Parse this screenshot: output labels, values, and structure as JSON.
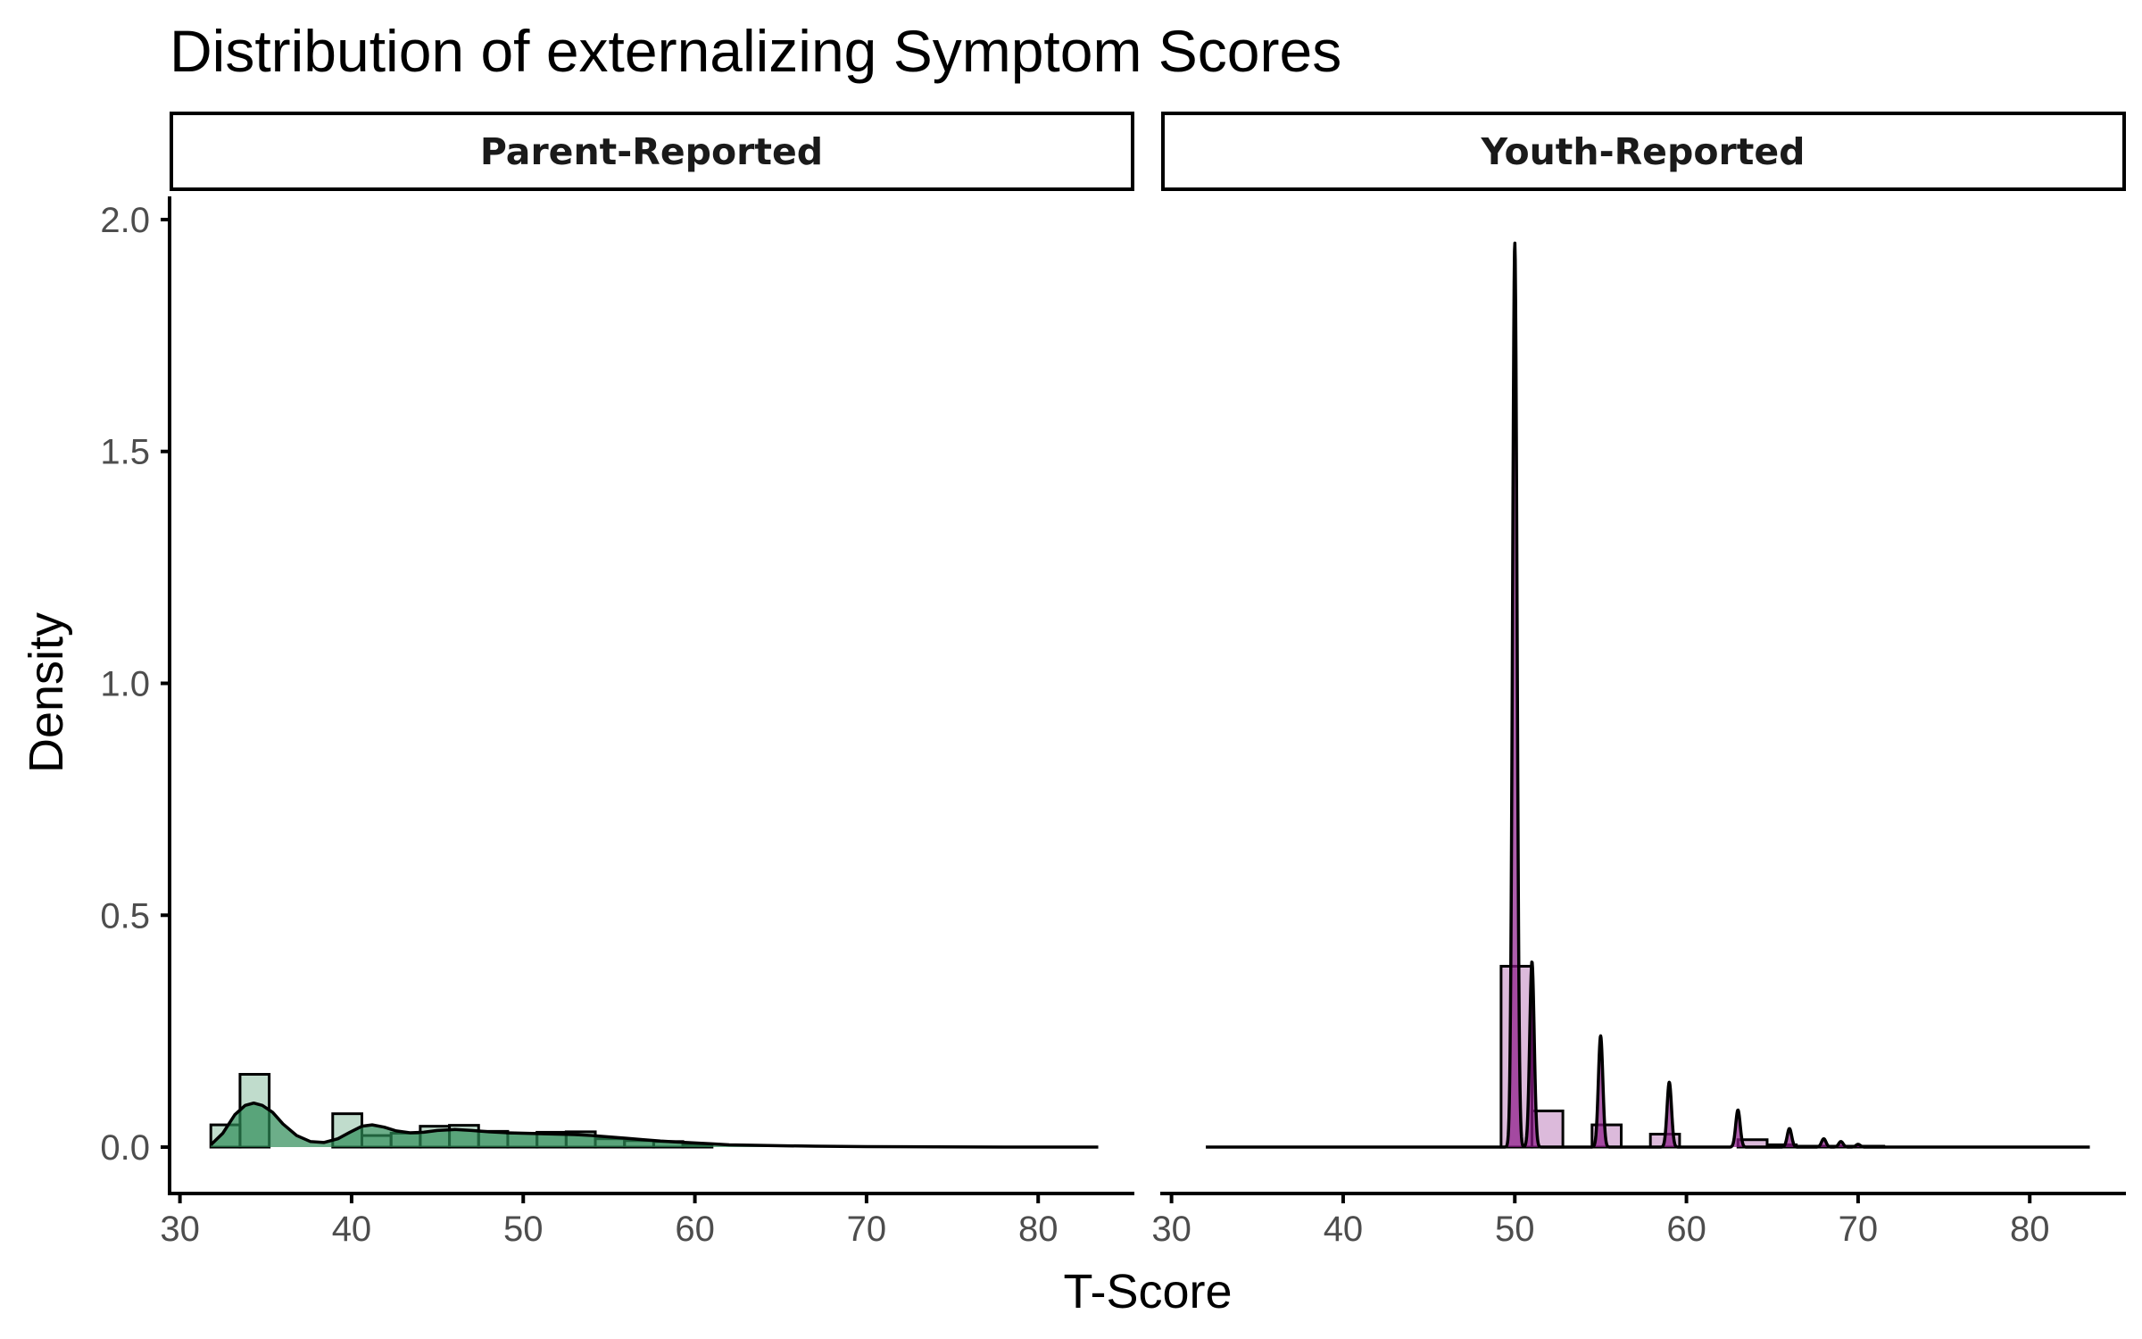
{
  "chart_data": {
    "type": "histogram+density",
    "title": "Distribution of externalizing Symptom Scores",
    "xlabel": "T-Score",
    "ylabel": "Density",
    "xlim": [
      29.5,
      85.5
    ],
    "ylim": [
      -0.1,
      2.05
    ],
    "x_ticks": [
      30,
      40,
      50,
      60,
      70,
      80
    ],
    "y_ticks": [
      0.0,
      0.5,
      1.0,
      1.5,
      2.0
    ],
    "x_tick_labels": [
      "30",
      "40",
      "50",
      "60",
      "70",
      "80"
    ],
    "y_tick_labels": [
      "0.0",
      "0.5",
      "1.0",
      "1.5",
      "2.0"
    ],
    "grid": false,
    "panels": [
      {
        "strip_label": "Parent-Reported",
        "bar_color": "#2e8b57",
        "bar_opacity": 0.3,
        "density_color": "#2e8b57",
        "density_opacity": 0.7,
        "histogram": [
          {
            "x0": 31.8,
            "x1": 33.5,
            "density": 0.048
          },
          {
            "x0": 33.5,
            "x1": 35.2,
            "density": 0.157
          },
          {
            "x0": 35.2,
            "x1": 38.9,
            "density": 0.0
          },
          {
            "x0": 38.9,
            "x1": 40.6,
            "density": 0.072
          },
          {
            "x0": 40.6,
            "x1": 42.3,
            "density": 0.025
          },
          {
            "x0": 42.3,
            "x1": 44.0,
            "density": 0.03
          },
          {
            "x0": 44.0,
            "x1": 45.7,
            "density": 0.045
          },
          {
            "x0": 45.7,
            "x1": 47.4,
            "density": 0.047
          },
          {
            "x0": 47.4,
            "x1": 49.1,
            "density": 0.034
          },
          {
            "x0": 49.1,
            "x1": 50.8,
            "density": 0.03
          },
          {
            "x0": 50.8,
            "x1": 52.5,
            "density": 0.032
          },
          {
            "x0": 52.5,
            "x1": 54.2,
            "density": 0.033
          },
          {
            "x0": 54.2,
            "x1": 55.9,
            "density": 0.018
          },
          {
            "x0": 55.9,
            "x1": 57.6,
            "density": 0.014
          },
          {
            "x0": 57.6,
            "x1": 59.3,
            "density": 0.012
          },
          {
            "x0": 59.3,
            "x1": 61.0,
            "density": 0.006
          }
        ],
        "density_curve": {
          "x": [
            31.8,
            32.5,
            33.2,
            33.8,
            34.3,
            34.8,
            35.4,
            36.0,
            36.8,
            37.6,
            38.4,
            39.2,
            39.9,
            40.6,
            41.2,
            41.9,
            42.6,
            43.4,
            44.2,
            45.0,
            46.0,
            47.0,
            48.0,
            49.0,
            50.0,
            51.0,
            52.0,
            53.0,
            54.0,
            55.0,
            56.0,
            57.0,
            58.0,
            59.0,
            60.0,
            61.0,
            62.0,
            63.5,
            65.0,
            67.0,
            70.0,
            74.0,
            78.0,
            83.5
          ],
          "y": [
            0.005,
            0.03,
            0.07,
            0.09,
            0.095,
            0.09,
            0.075,
            0.05,
            0.025,
            0.012,
            0.01,
            0.018,
            0.032,
            0.045,
            0.048,
            0.043,
            0.035,
            0.031,
            0.032,
            0.036,
            0.038,
            0.036,
            0.033,
            0.031,
            0.03,
            0.029,
            0.028,
            0.027,
            0.025,
            0.022,
            0.019,
            0.016,
            0.013,
            0.011,
            0.009,
            0.007,
            0.005,
            0.004,
            0.003,
            0.002,
            0.001,
            0.0005,
            0.0002,
            0.0
          ]
        }
      },
      {
        "strip_label": "Youth-Reported",
        "bar_color": "#8b1a89",
        "bar_opacity": 0.3,
        "density_color": "#8b1a89",
        "density_opacity": 0.7,
        "histogram": [
          {
            "x0": 49.2,
            "x1": 51.0,
            "density": 0.39
          },
          {
            "x0": 51.0,
            "x1": 52.8,
            "density": 0.078
          },
          {
            "x0": 52.8,
            "x1": 54.5,
            "density": 0.0
          },
          {
            "x0": 54.5,
            "x1": 56.2,
            "density": 0.048
          },
          {
            "x0": 56.2,
            "x1": 57.9,
            "density": 0.0
          },
          {
            "x0": 57.9,
            "x1": 59.6,
            "density": 0.028
          },
          {
            "x0": 59.6,
            "x1": 63.0,
            "density": 0.0
          },
          {
            "x0": 63.0,
            "x1": 64.7,
            "density": 0.016
          },
          {
            "x0": 64.7,
            "x1": 66.4,
            "density": 0.005
          },
          {
            "x0": 66.4,
            "x1": 68.1,
            "density": 0.002
          },
          {
            "x0": 68.1,
            "x1": 69.8,
            "density": 0.002
          },
          {
            "x0": 69.8,
            "x1": 71.5,
            "density": 0.002
          }
        ],
        "density_peaks": [
          {
            "center": 50.0,
            "height": 1.95,
            "sigma": 0.13
          },
          {
            "center": 51.0,
            "height": 0.4,
            "sigma": 0.13
          },
          {
            "center": 55.0,
            "height": 0.24,
            "sigma": 0.13
          },
          {
            "center": 59.0,
            "height": 0.14,
            "sigma": 0.13
          },
          {
            "center": 63.0,
            "height": 0.08,
            "sigma": 0.13
          },
          {
            "center": 66.0,
            "height": 0.04,
            "sigma": 0.13
          },
          {
            "center": 68.0,
            "height": 0.018,
            "sigma": 0.13
          },
          {
            "center": 69.0,
            "height": 0.012,
            "sigma": 0.13
          },
          {
            "center": 70.0,
            "height": 0.006,
            "sigma": 0.13
          }
        ],
        "density_range": [
          32.0,
          83.5
        ]
      }
    ]
  }
}
